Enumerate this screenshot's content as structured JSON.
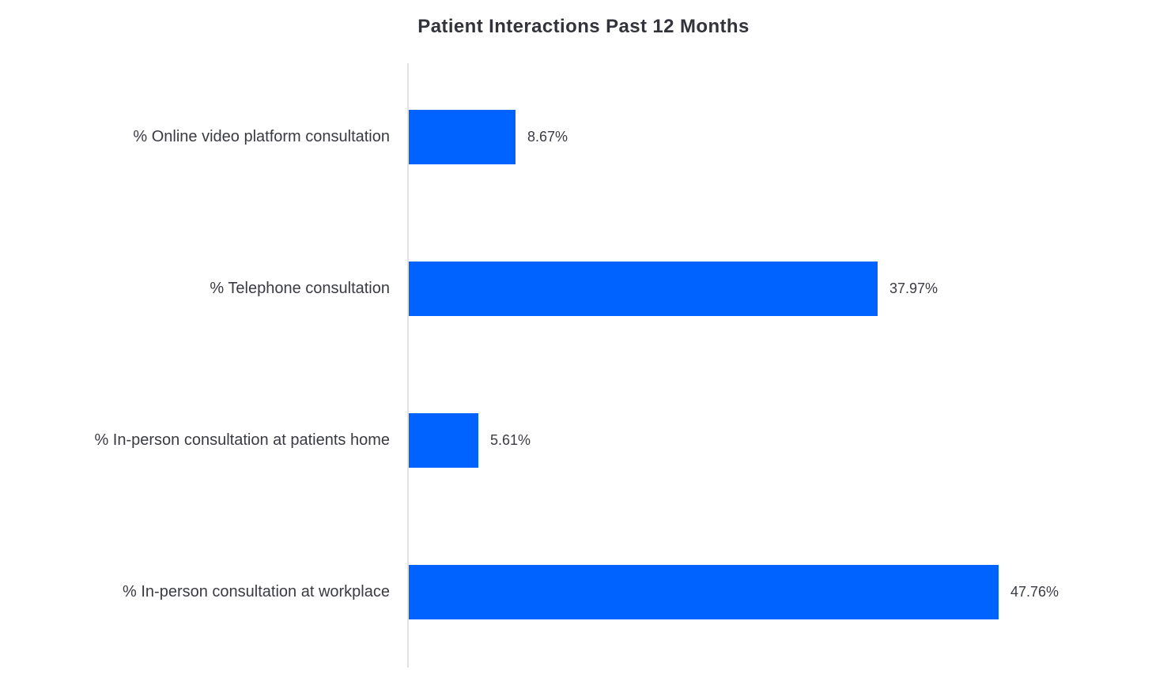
{
  "chart_data": {
    "type": "bar",
    "orientation": "horizontal",
    "title": "Patient Interactions Past 12 Months",
    "categories": [
      "% Online video platform consultation",
      "% Telephone consultation",
      "% In-person consultation at patients home",
      "% In-person consultation at workplace"
    ],
    "values": [
      8.67,
      37.97,
      5.61,
      47.76
    ],
    "value_labels": [
      "8.67%",
      "37.97%",
      "5.61%",
      "47.76%"
    ],
    "xlim": [
      0,
      61.5
    ],
    "grid": "off",
    "legend": "none",
    "colors": {
      "bar": "#0062ff",
      "axis_line": "#e2e2e5",
      "label_text": "#3a3b41",
      "value_text": "#3b3c43",
      "title_text": "#32333b"
    }
  }
}
